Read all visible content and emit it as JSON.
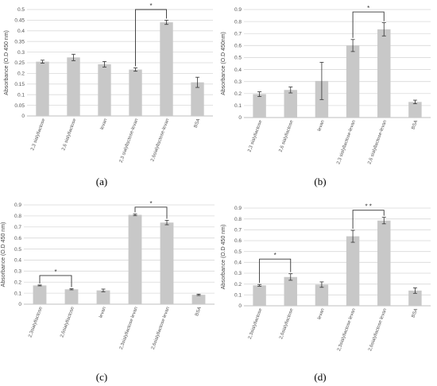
{
  "chart_data": [
    {
      "type": "bar",
      "panel_label": "(a)",
      "ylabel": "Absorbance (O.D 450 nm)",
      "ylim": [
        0,
        0.5
      ],
      "yticks": [
        "0",
        "0.05",
        "0.1",
        "0.15",
        "0.2",
        "0.25",
        "0.3",
        "0.35",
        "0.4",
        "0.45",
        "0.5"
      ],
      "categories": [
        "2,3 sialyllactose",
        "2,6 sialyllactose",
        "levan",
        "2,3 sialyllactose-levan",
        "2,6sialyllactose-levan",
        "BSA"
      ],
      "values": [
        0.255,
        0.275,
        0.243,
        0.218,
        0.44,
        0.158
      ],
      "errors": [
        0.007,
        0.015,
        0.013,
        0.008,
        0.01,
        0.024
      ],
      "significance": [
        {
          "from": 3,
          "to": 4,
          "label": "*",
          "level": 0.5
        }
      ],
      "bar_color": "#c8c8c8",
      "grid": true
    },
    {
      "type": "bar",
      "panel_label": "(b)",
      "ylabel": "Absorbance (O.D 450nm)",
      "ylim": [
        0,
        0.9
      ],
      "yticks": [
        "0",
        "0.1",
        "0.2",
        "0.3",
        "0.4",
        "0.5",
        "0.6",
        "0.7",
        "0.8",
        "0.9"
      ],
      "categories": [
        "2,3 sialyllactose",
        "2,6 sialyllactose",
        "levan",
        "2,3 sialyllactose-levan",
        "2,6 sialyllactose-levan",
        "BSA"
      ],
      "values": [
        0.195,
        0.23,
        0.305,
        0.6,
        0.735,
        0.13
      ],
      "errors": [
        0.02,
        0.025,
        0.155,
        0.05,
        0.055,
        0.015
      ],
      "significance": [
        {
          "from": 3,
          "to": 4,
          "label": "*",
          "level": 0.88
        }
      ],
      "bar_color": "#c8c8c8",
      "grid": true
    },
    {
      "type": "bar",
      "panel_label": "(c)",
      "ylabel": "Absorbance (O.D 450 nm)",
      "ylim": [
        0,
        0.9
      ],
      "yticks": [
        "0",
        "0.1",
        "0.2",
        "0.3",
        "0.4",
        "0.5",
        "0.6",
        "0.7",
        "0.8",
        "0.9"
      ],
      "categories": [
        "2,3sialyllactose",
        "2,6sialyllactose",
        "levan",
        "2,3sialyllactose levan",
        "2,6sialyllactose levan",
        "BSA"
      ],
      "values": [
        0.17,
        0.135,
        0.125,
        0.81,
        0.74,
        0.085
      ],
      "errors": [
        0.004,
        0.005,
        0.012,
        0.008,
        0.02,
        0.006
      ],
      "significance": [
        {
          "from": 0,
          "to": 1,
          "label": "*",
          "level": 0.26
        },
        {
          "from": 3,
          "to": 4,
          "label": "*",
          "level": 0.88
        }
      ],
      "bar_color": "#c8c8c8",
      "grid": true
    },
    {
      "type": "bar",
      "panel_label": "(d)",
      "ylabel": "Absorbance (O.D 450 nm)",
      "ylim": [
        0,
        0.9
      ],
      "yticks": [
        "0",
        "0.1",
        "0.2",
        "0.3",
        "0.4",
        "0.5",
        "0.6",
        "0.7",
        "0.8",
        "0.9"
      ],
      "categories": [
        "2,3sialyllactose",
        "2,6sialyllactose",
        "levan",
        "2,3sialyllactose levan",
        "2,6sialyllactose levan",
        "BSA"
      ],
      "values": [
        0.188,
        0.265,
        0.195,
        0.64,
        0.785,
        0.14
      ],
      "errors": [
        0.008,
        0.03,
        0.025,
        0.055,
        0.03,
        0.025
      ],
      "significance": [
        {
          "from": 0,
          "to": 1,
          "label": "*",
          "level": 0.43
        },
        {
          "from": 3,
          "to": 4,
          "label": "* *",
          "level": 0.88
        }
      ],
      "bar_color": "#c8c8c8",
      "grid": true
    }
  ]
}
